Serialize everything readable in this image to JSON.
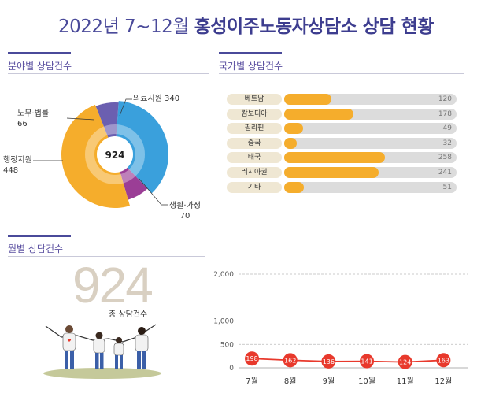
{
  "title": {
    "prefix": "2022년 7~12월",
    "main": "홍성이주노동자상담소 상담 현황"
  },
  "sections": {
    "field": "분야별 상담건수",
    "country": "국가별 상담건수",
    "monthly": "월별 상담건수"
  },
  "colors": {
    "accent": "#4a4a9a",
    "blue": "#3aa0dc",
    "orange": "#f5ad2c",
    "purple": "#9b3e96",
    "indigo": "#6b5fb0",
    "red": "#e8392c"
  },
  "field_pie": {
    "total": "924",
    "labels": {
      "medical": {
        "name": "의료지원",
        "value": "340"
      },
      "labor": {
        "name": "노무·법률",
        "value": "66"
      },
      "admin": {
        "name": "행정지원",
        "value": "448"
      },
      "life": {
        "name": "생활·가정",
        "value": "70"
      }
    }
  },
  "countries": [
    {
      "name": "베트남",
      "value": 120,
      "label": "120"
    },
    {
      "name": "캄보디아",
      "value": 178,
      "label": "178"
    },
    {
      "name": "필리핀",
      "value": 49,
      "label": "49"
    },
    {
      "name": "중국",
      "value": 32,
      "label": "32"
    },
    {
      "name": "태국",
      "value": 258,
      "label": "258"
    },
    {
      "name": "러시아권",
      "value": 241,
      "label": "241"
    },
    {
      "name": "기타",
      "value": 51,
      "label": "51"
    }
  ],
  "monthly": {
    "total": "924",
    "total_label": "총 상담건수"
  },
  "chart_data": [
    {
      "type": "pie",
      "categories": [
        "의료지원",
        "생활·가정",
        "행정지원",
        "노무·법률"
      ],
      "values": [
        340,
        70,
        448,
        66
      ],
      "center_label": "924"
    },
    {
      "type": "bar",
      "categories": [
        "베트남",
        "캄보디아",
        "필리핀",
        "중국",
        "태국",
        "러시아권",
        "기타"
      ],
      "values": [
        120,
        178,
        49,
        32,
        258,
        241,
        51
      ]
    },
    {
      "type": "line",
      "x": [
        "7월",
        "8월",
        "9월",
        "10월",
        "11월",
        "12월"
      ],
      "values": [
        198,
        162,
        136,
        141,
        124,
        163
      ],
      "ylim": [
        0,
        2000
      ],
      "yticks": [
        "0",
        "500",
        "1,000",
        "2,000"
      ],
      "grid": true
    }
  ]
}
